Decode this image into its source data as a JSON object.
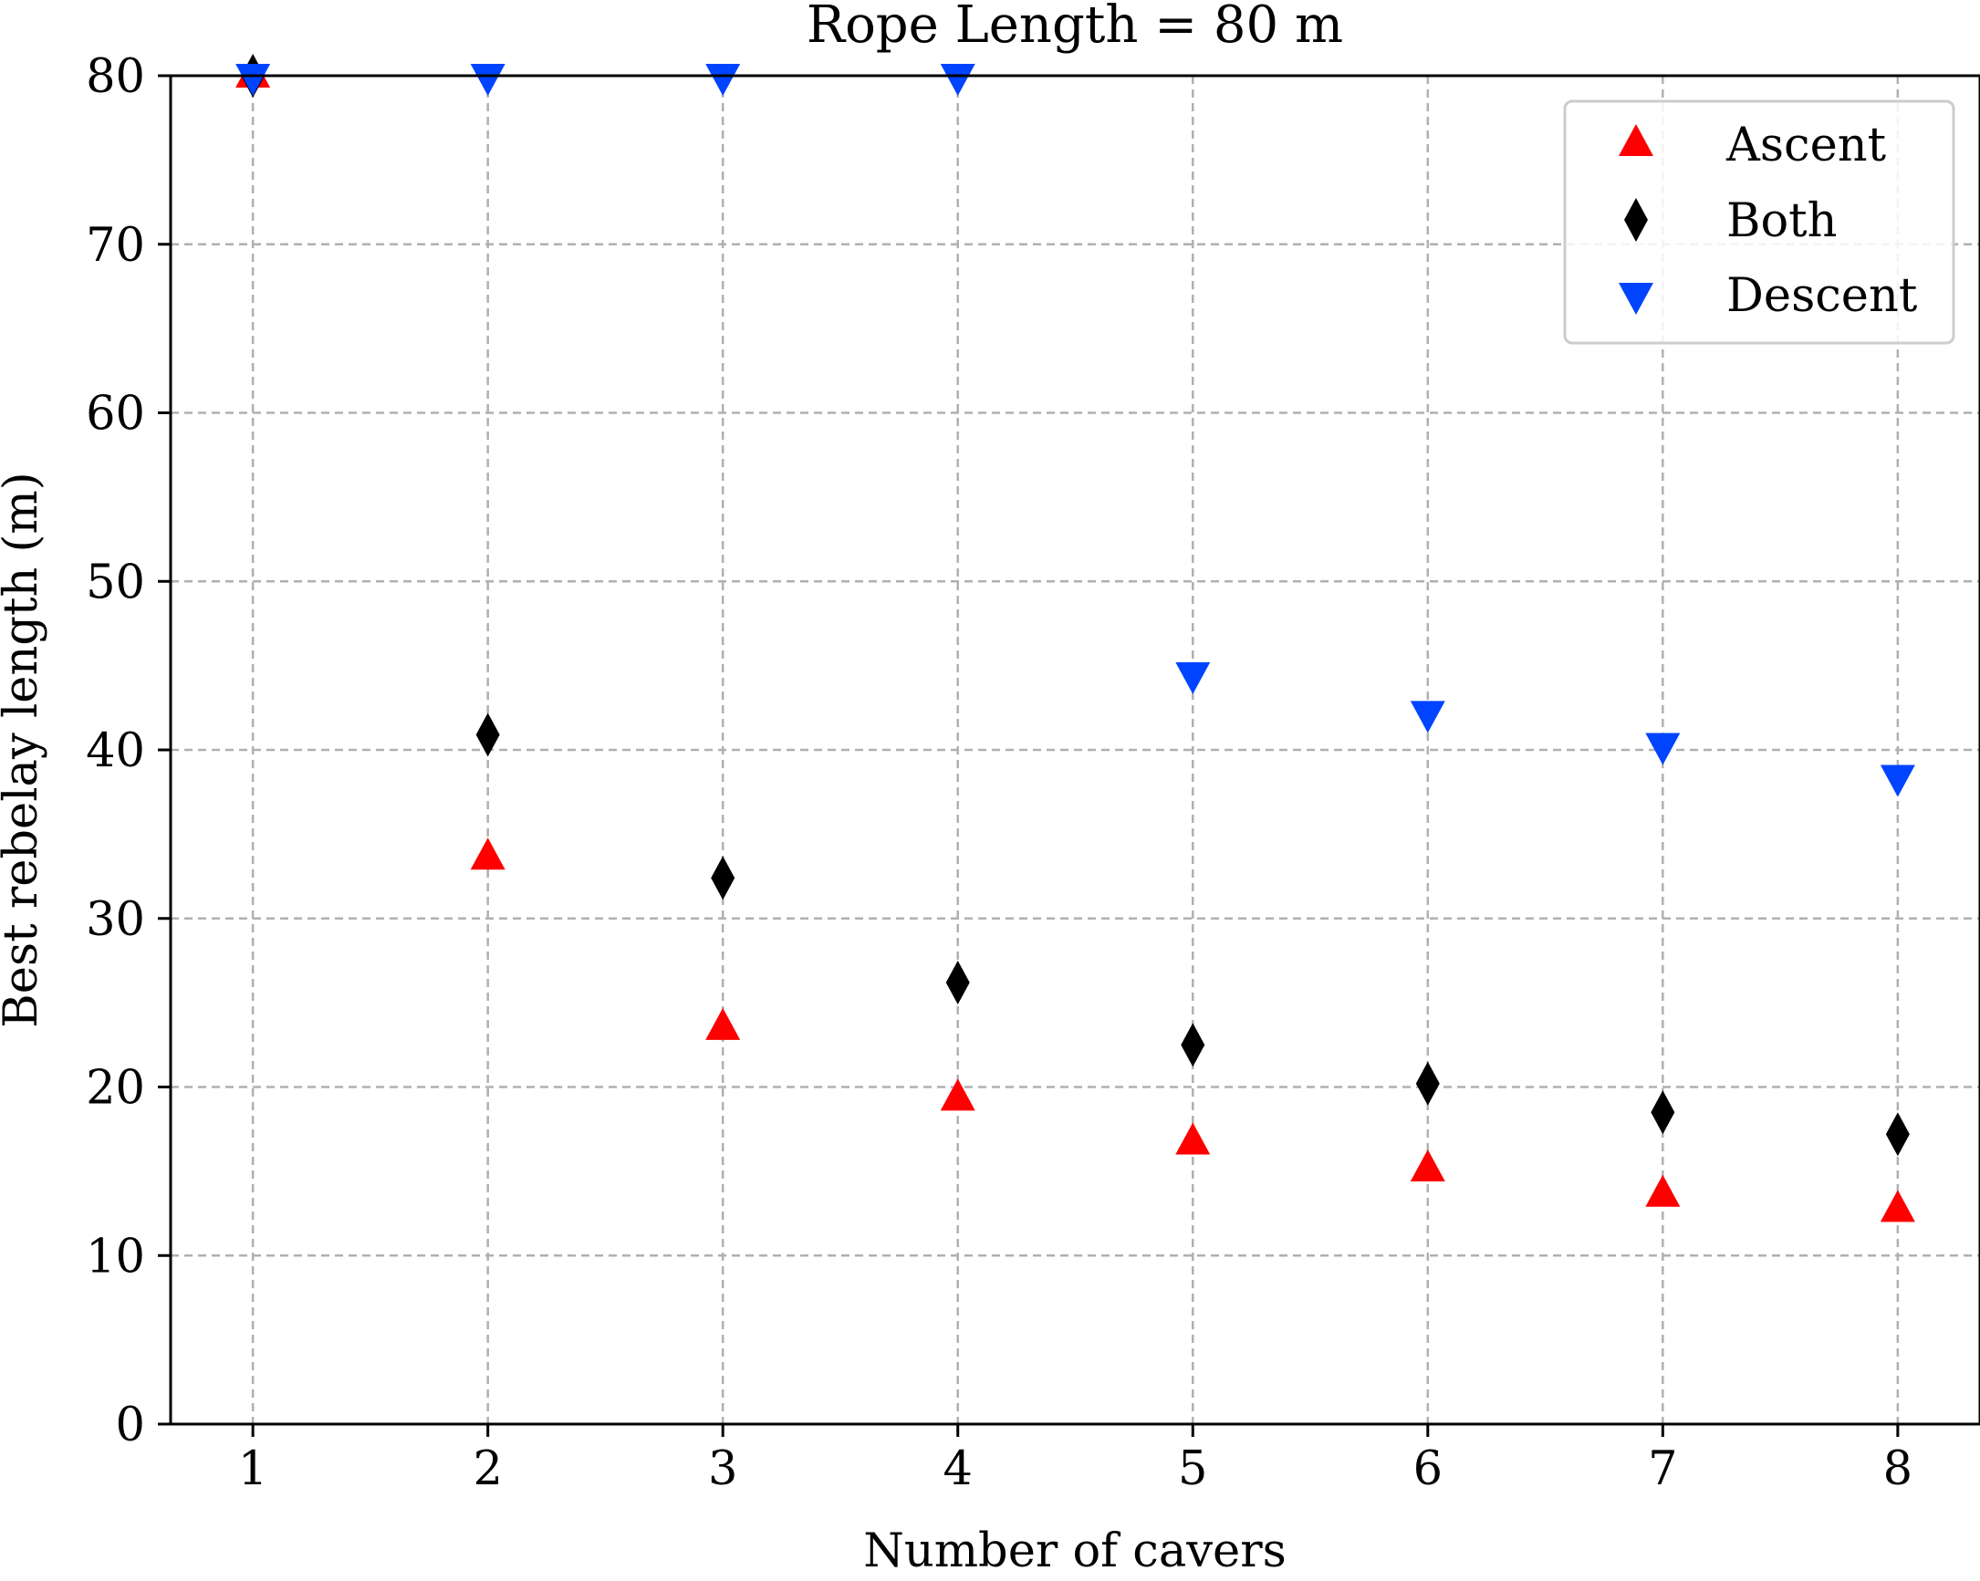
{
  "chart_data": {
    "type": "scatter",
    "title": "Rope Length = 80 m",
    "xlabel": "Number of cavers",
    "ylabel": "Best rebelay length (m)",
    "xlim": [
      0.65,
      8.35
    ],
    "ylim": [
      0,
      80
    ],
    "x": [
      1,
      2,
      3,
      4,
      5,
      6,
      7,
      8
    ],
    "xticks": [
      1,
      2,
      3,
      4,
      5,
      6,
      7,
      8
    ],
    "yticks": [
      0,
      10,
      20,
      30,
      40,
      50,
      60,
      70,
      80
    ],
    "grid": true,
    "legend_position": "top-right",
    "series": [
      {
        "name": "Ascent",
        "marker": "triangle-up",
        "color": "#ff0000",
        "values": [
          80,
          33.6,
          23.5,
          19.3,
          16.7,
          15.1,
          13.6,
          12.7
        ]
      },
      {
        "name": "Both",
        "marker": "thin-diamond",
        "color": "#000000",
        "values": [
          80,
          40.9,
          32.4,
          26.2,
          22.5,
          20.2,
          18.5,
          17.2
        ]
      },
      {
        "name": "Descent",
        "marker": "triangle-down",
        "color": "#0044ff",
        "values": [
          80,
          80,
          80,
          80,
          44.5,
          42.2,
          40.3,
          38.4
        ]
      }
    ]
  }
}
